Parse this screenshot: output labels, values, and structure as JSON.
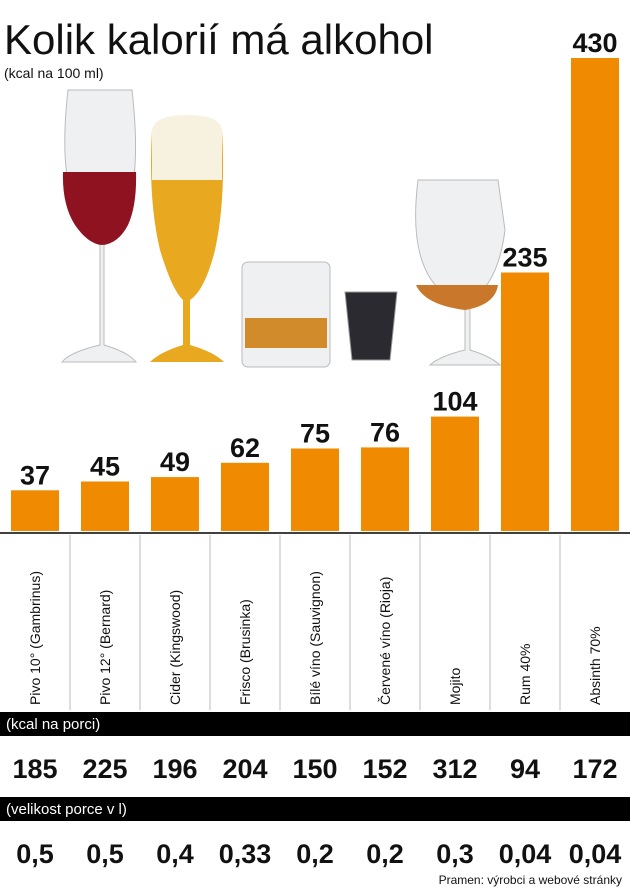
{
  "chart_data": {
    "type": "bar",
    "title": "Kolik kalorií má alkohol",
    "subtitle": "(kcal na 100 ml)",
    "categories": [
      "Pivo 10° (Gambrinus)",
      "Pivo 12° (Bernard)",
      "Cider (Kingswood)",
      "Frisco (Brusinka)",
      "Bílé víno (Sauvignon)",
      "Červené víno (Rioja)",
      "Mojito",
      "Rum 40%",
      "Absinth 70%"
    ],
    "values": [
      37,
      45,
      49,
      62,
      75,
      76,
      104,
      235,
      430
    ],
    "color": "#f08a00",
    "portion_kcal": {
      "label": "(kcal na porci)",
      "values": [
        185,
        225,
        196,
        204,
        150,
        152,
        312,
        94,
        172
      ]
    },
    "portion_size": {
      "label": "(velikost porce v l)",
      "values": [
        0.5,
        0.5,
        0.4,
        0.33,
        0.2,
        0.2,
        0.3,
        0.04,
        0.04
      ],
      "value_labels": [
        "0,5",
        "0,5",
        "0,4",
        "0,33",
        "0,2",
        "0,2",
        "0,3",
        "0,04",
        "0,04"
      ]
    },
    "source": "Pramen: výrobci a webové stránky"
  }
}
